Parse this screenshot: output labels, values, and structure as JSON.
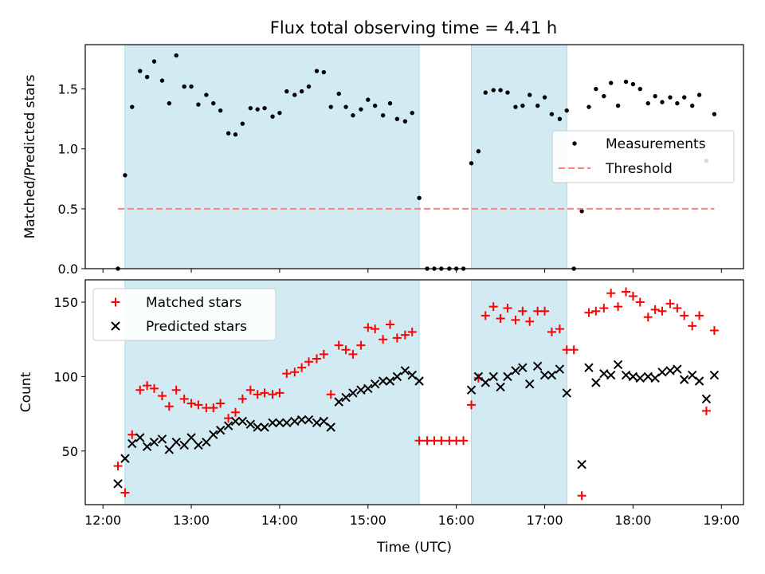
{
  "chart_data": {
    "title": "Flux total observing time = 4.41 h",
    "xlabel": "Time (UTC)",
    "x_ticks": [
      "12:00",
      "13:00",
      "14:00",
      "15:00",
      "16:00",
      "17:00",
      "18:00",
      "19:00"
    ],
    "x_tick_hours": [
      12,
      13,
      14,
      15,
      16,
      17,
      18,
      19
    ],
    "xlim_hours": [
      11.8,
      19.25
    ],
    "shaded_intervals_hours": [
      [
        12.25,
        15.58
      ],
      [
        16.17,
        17.25
      ]
    ],
    "shade_color": "#add8e6",
    "panels": [
      {
        "type": "scatter",
        "ylabel": "Matched/Predicted stars",
        "ylim": [
          0,
          1.87
        ],
        "y_ticks": [
          0.0,
          0.5,
          1.0,
          1.5
        ],
        "y_tick_labels": [
          "0.0",
          "0.5",
          "1.0",
          "1.5"
        ],
        "legend_position": "center-right",
        "series": [
          {
            "name": "Measurements",
            "color": "#000000",
            "marker": "dot",
            "x_hours": [
              12.17,
              12.25,
              12.33,
              12.42,
              12.5,
              12.58,
              12.67,
              12.75,
              12.83,
              12.92,
              13.0,
              13.08,
              13.17,
              13.25,
              13.33,
              13.42,
              13.5,
              13.58,
              13.67,
              13.75,
              13.83,
              13.92,
              14.0,
              14.08,
              14.17,
              14.25,
              14.33,
              14.42,
              14.5,
              14.58,
              14.67,
              14.75,
              14.83,
              14.92,
              15.0,
              15.08,
              15.17,
              15.25,
              15.33,
              15.42,
              15.5,
              15.58,
              15.67,
              15.75,
              15.83,
              15.92,
              16.0,
              16.08,
              16.17,
              16.25,
              16.33,
              16.42,
              16.5,
              16.58,
              16.67,
              16.75,
              16.83,
              16.92,
              17.0,
              17.08,
              17.17,
              17.25,
              17.33,
              17.42,
              17.5,
              17.58,
              17.67,
              17.75,
              17.83,
              17.92,
              18.0,
              18.08,
              18.17,
              18.25,
              18.33,
              18.42,
              18.5,
              18.58,
              18.67,
              18.75,
              18.83,
              18.92
            ],
            "y": [
              0.0,
              0.78,
              1.35,
              1.65,
              1.6,
              1.73,
              1.57,
              1.38,
              1.78,
              1.52,
              1.52,
              1.37,
              1.45,
              1.38,
              1.32,
              1.13,
              1.12,
              1.21,
              1.34,
              1.33,
              1.34,
              1.27,
              1.3,
              1.48,
              1.45,
              1.48,
              1.52,
              1.65,
              1.64,
              1.35,
              1.46,
              1.35,
              1.28,
              1.33,
              1.41,
              1.36,
              1.28,
              1.38,
              1.25,
              1.23,
              1.3,
              0.59,
              0.0,
              0.0,
              0.0,
              0.0,
              0.0,
              0.0,
              0.88,
              0.98,
              1.47,
              1.49,
              1.49,
              1.47,
              1.35,
              1.36,
              1.45,
              1.36,
              1.43,
              1.29,
              1.25,
              1.32,
              0.0,
              0.48,
              1.35,
              1.5,
              1.44,
              1.55,
              1.36,
              1.56,
              1.54,
              1.5,
              1.38,
              1.44,
              1.39,
              1.43,
              1.38,
              1.43,
              1.36,
              1.45,
              0.9,
              1.29
            ]
          },
          {
            "name": "Threshold",
            "type": "line",
            "color": "#ff7f7f",
            "dash": "dashed",
            "x_hours": [
              12.17,
              18.92
            ],
            "y": [
              0.5,
              0.5
            ]
          }
        ]
      },
      {
        "type": "scatter",
        "ylabel": "Count",
        "ylim": [
          14,
          165
        ],
        "y_ticks": [
          50,
          100,
          150
        ],
        "y_tick_labels": [
          "50",
          "100",
          "150"
        ],
        "legend_position": "upper-left",
        "series": [
          {
            "name": "Matched stars",
            "color": "#ff0000",
            "marker": "plus",
            "x_hours": [
              12.17,
              12.25,
              12.33,
              12.42,
              12.5,
              12.58,
              12.67,
              12.75,
              12.83,
              12.92,
              13.0,
              13.08,
              13.17,
              13.25,
              13.33,
              13.42,
              13.5,
              13.58,
              13.67,
              13.75,
              13.83,
              13.92,
              14.0,
              14.08,
              14.17,
              14.25,
              14.33,
              14.42,
              14.5,
              14.58,
              14.67,
              14.75,
              14.83,
              14.92,
              15.0,
              15.08,
              15.17,
              15.25,
              15.33,
              15.42,
              15.5,
              15.58,
              15.67,
              15.75,
              15.83,
              15.92,
              16.0,
              16.08,
              16.17,
              16.25,
              16.33,
              16.42,
              16.5,
              16.58,
              16.67,
              16.75,
              16.83,
              16.92,
              17.0,
              17.08,
              17.17,
              17.25,
              17.33,
              17.42,
              17.5,
              17.58,
              17.67,
              17.75,
              17.83,
              17.92,
              18.0,
              18.08,
              18.17,
              18.25,
              18.33,
              18.42,
              18.5,
              18.58,
              18.67,
              18.75,
              18.83,
              18.92
            ],
            "y": [
              40,
              22,
              61,
              91,
              94,
              92,
              87,
              80,
              91,
              85,
              82,
              81,
              79,
              79,
              82,
              72,
              76,
              85,
              91,
              88,
              89,
              88,
              89,
              102,
              103,
              106,
              110,
              112,
              115,
              88,
              121,
              118,
              115,
              121,
              133,
              132,
              125,
              135,
              126,
              128,
              130,
              57,
              57,
              57,
              57,
              57,
              57,
              57,
              81,
              99,
              141,
              147,
              139,
              146,
              138,
              144,
              137,
              144,
              144,
              130,
              132,
              118,
              118,
              20,
              143,
              144,
              146,
              156,
              147,
              157,
              154,
              150,
              140,
              145,
              144,
              149,
              146,
              141,
              134,
              141,
              77,
              131
            ]
          },
          {
            "name": "Predicted stars",
            "color": "#000000",
            "marker": "cross",
            "x_hours": [
              12.17,
              12.25,
              12.33,
              12.42,
              12.5,
              12.58,
              12.67,
              12.75,
              12.83,
              12.92,
              13.0,
              13.08,
              13.17,
              13.25,
              13.33,
              13.42,
              13.5,
              13.58,
              13.67,
              13.75,
              13.83,
              13.92,
              14.0,
              14.08,
              14.17,
              14.25,
              14.33,
              14.42,
              14.5,
              14.58,
              14.67,
              14.75,
              14.83,
              14.92,
              15.0,
              15.08,
              15.17,
              15.25,
              15.33,
              15.42,
              15.5,
              15.58,
              16.17,
              16.25,
              16.33,
              16.42,
              16.5,
              16.58,
              16.67,
              16.75,
              16.83,
              16.92,
              17.0,
              17.08,
              17.17,
              17.25,
              17.42,
              17.5,
              17.58,
              17.67,
              17.75,
              17.83,
              17.92,
              18.0,
              18.08,
              18.17,
              18.25,
              18.33,
              18.42,
              18.5,
              18.58,
              18.67,
              18.75,
              18.83,
              18.92
            ],
            "y": [
              28,
              45,
              55,
              59,
              53,
              56,
              58,
              51,
              56,
              54,
              59,
              54,
              56,
              61,
              64,
              67,
              70,
              70,
              68,
              66,
              66,
              69,
              69,
              69,
              70,
              71,
              71,
              69,
              70,
              66,
              83,
              86,
              89,
              91,
              92,
              95,
              97,
              97,
              100,
              104,
              101,
              97,
              91,
              100,
              96,
              100,
              93,
              100,
              104,
              106,
              95,
              107,
              101,
              101,
              105,
              89,
              41,
              106,
              96,
              102,
              101,
              108,
              101,
              100,
              99,
              100,
              99,
              103,
              104,
              105,
              98,
              101,
              97,
              85,
              101
            ]
          }
        ]
      }
    ]
  }
}
